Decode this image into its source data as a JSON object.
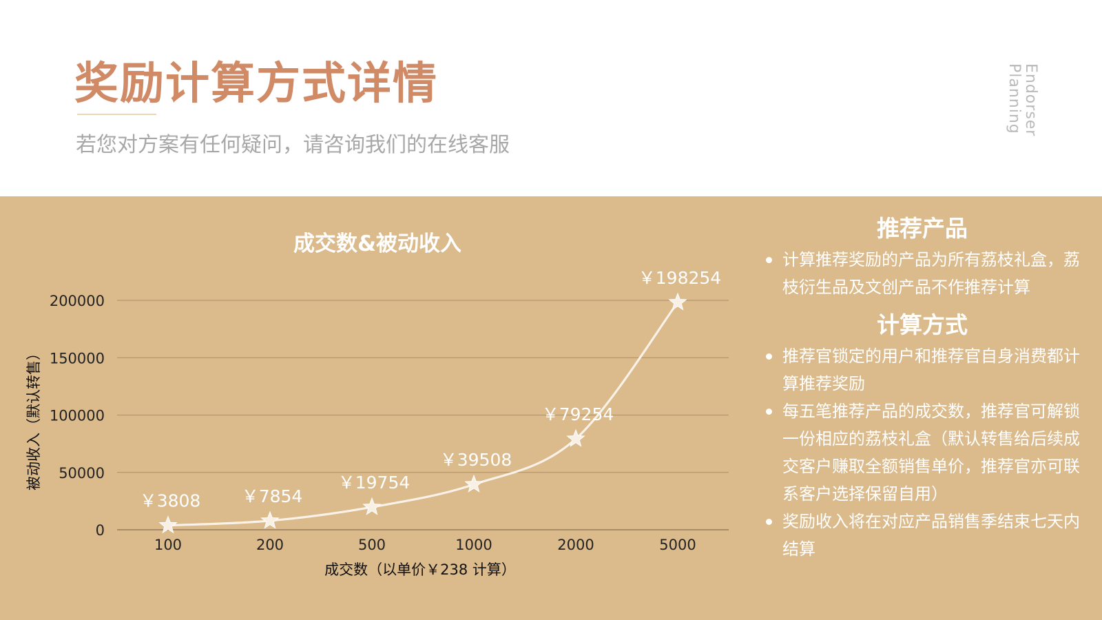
{
  "header": {
    "title": "奖励计算方式详情",
    "subtitle": "若您对方案有任何疑问，请咨询我们的在线客服",
    "vertical_tag": [
      "Endorser",
      "Planning"
    ]
  },
  "chart_data": {
    "type": "line",
    "title": "成交数&被动收入",
    "xlabel": "成交数（以单价￥238 计算）",
    "ylabel": "被动收入（默认转售）",
    "categories": [
      "100",
      "200",
      "500",
      "1000",
      "2000",
      "5000"
    ],
    "values": [
      3808,
      7854,
      19754,
      39508,
      79254,
      198254
    ],
    "data_labels": [
      "￥3808",
      "￥7854",
      "￥19754",
      "￥39508",
      "￥79254",
      "￥198254"
    ],
    "y_ticks": [
      0,
      50000,
      100000,
      150000,
      200000
    ],
    "ylim": [
      0,
      200000
    ],
    "grid": true,
    "smooth": true,
    "marker": "star",
    "colors": {
      "line": "#faf2e8",
      "marker": "#f8efe5",
      "label": "#ffffff",
      "background": "#dbba8c"
    }
  },
  "side": {
    "section1": {
      "heading": "推荐产品",
      "items": [
        "计算推荐奖励的产品为所有荔枝礼盒，荔枝衍生品及文创产品不作推荐计算"
      ]
    },
    "section2": {
      "heading": "计算方式",
      "items": [
        "推荐官锁定的用户和推荐官自身消费都计算推荐奖励",
        "每五笔推荐产品的成交数，推荐官可解锁一份相应的荔枝礼盒（默认转售给后续成交客户赚取全额销售单价，推荐官亦可联系客户选择保留自用）",
        "奖励收入将在对应产品销售季结束七天内结算"
      ]
    }
  },
  "colors": {
    "title": "#d08a66",
    "subtitle": "#a7a7a7",
    "panel": "#dbba8c",
    "text_on_panel": "#ffffff"
  }
}
